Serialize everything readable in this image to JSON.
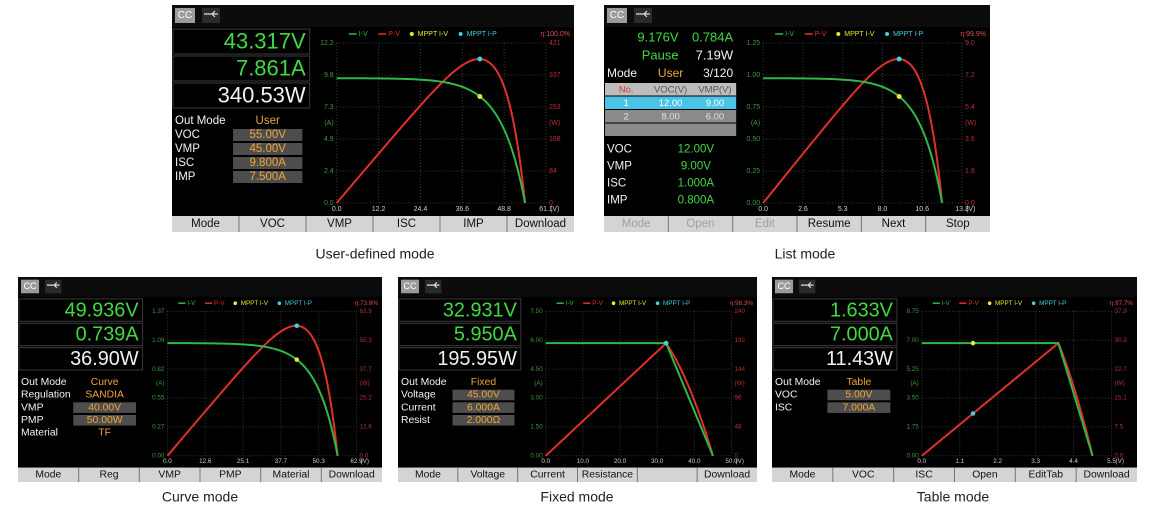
{
  "screens": [
    {
      "caption": "User-defined mode",
      "status": "CC",
      "readings": [
        "43.317V",
        "7.861A",
        "340.53W"
      ],
      "params": [
        {
          "label": "Out Mode",
          "value": "User"
        },
        {
          "label": "VOC",
          "value": "55.00V"
        },
        {
          "label": "VMP",
          "value": "45.00V"
        },
        {
          "label": "ISC",
          "value": "9.800A"
        },
        {
          "label": "IMP",
          "value": "7.500A"
        }
      ],
      "legend": [
        "I-V",
        "P-V",
        "MPPT I-V",
        "MPPT I-P"
      ],
      "efficiency": "η:100.0%",
      "xticks": [
        "0.0",
        "12.2",
        "24.4",
        "36.6",
        "48.8",
        "61.1"
      ],
      "x_unit": "(V)",
      "yticks": [
        "12.2",
        "9.8",
        "7.3",
        "4.9",
        "2.4",
        "0.0"
      ],
      "y_unit": "(A)",
      "y2ticks": [
        "421",
        "337",
        "253",
        "168",
        "84",
        "0"
      ],
      "y2_unit": "(W)",
      "softkeys": [
        "Mode",
        "VOC",
        "VMP",
        "ISC",
        "IMP",
        "Download"
      ]
    },
    {
      "caption": "List mode",
      "status": "CC",
      "readings": [
        "9.176V",
        "0.784A",
        "Pause",
        "7.19W"
      ],
      "mode_row": [
        "Mode",
        "User",
        "3/120"
      ],
      "table": {
        "header": [
          "No.",
          "VOC(V)",
          "VMP(V)"
        ],
        "rows": [
          [
            "1",
            "12.00",
            "9.00"
          ],
          [
            "2",
            "8.00",
            "6.00"
          ]
        ]
      },
      "params": [
        {
          "label": "VOC",
          "value": "12.00V"
        },
        {
          "label": "VMP",
          "value": "9.00V"
        },
        {
          "label": "ISC",
          "value": "1.000A"
        },
        {
          "label": "IMP",
          "value": "0.800A"
        }
      ],
      "legend": [
        "I-V",
        "P-V",
        "MPPT I-V",
        "MPPT I-P"
      ],
      "efficiency": "η:99.9%",
      "xticks": [
        "0.0",
        "2.6",
        "5.3",
        "8.0",
        "10.6",
        "13.3"
      ],
      "x_unit": "(V)",
      "yticks": [
        "1.25",
        "1.00",
        "0.75",
        "0.50",
        "0.25",
        "0.00"
      ],
      "y_unit": "(A)",
      "y2ticks": [
        "9.0",
        "7.2",
        "5.4",
        "3.6",
        "1.8",
        "0.0"
      ],
      "y2_unit": "(W)",
      "softkeys": [
        {
          "label": "Mode",
          "dimmed": true
        },
        {
          "label": "Open",
          "dimmed": true
        },
        {
          "label": "Edit",
          "dimmed": true
        },
        {
          "label": "Resume",
          "dimmed": false
        },
        {
          "label": "Next",
          "dimmed": false
        },
        {
          "label": "Stop",
          "dimmed": false
        }
      ]
    },
    {
      "caption": "Curve mode",
      "status": "CC",
      "readings": [
        "49.936V",
        "0.739A",
        "36.90W"
      ],
      "params": [
        {
          "label": "Out Mode",
          "value": "Curve"
        },
        {
          "label": "Regulation",
          "value": "SANDIA"
        },
        {
          "label": "VMP",
          "value": "40.00V"
        },
        {
          "label": "PMP",
          "value": "50.00W"
        },
        {
          "label": "Material",
          "value": "TF"
        }
      ],
      "legend": [
        "I-V",
        "P-V",
        "MPPT I-V",
        "MPPT I-P"
      ],
      "efficiency": "η:73.9%",
      "xticks": [
        "0.0",
        "12.6",
        "25.1",
        "37.7",
        "50.3",
        "62.9"
      ],
      "x_unit": "(V)",
      "yticks": [
        "1.37",
        "1.09",
        "0.82",
        "0.55",
        "0.27",
        "0.00"
      ],
      "y_unit": "(A)",
      "y2ticks": [
        "62.9",
        "50.3",
        "37.7",
        "25.2",
        "12.6",
        "0.0"
      ],
      "y2_unit": "(W)",
      "softkeys": [
        "Mode",
        "Reg",
        "VMP",
        "PMP",
        "Material",
        "Download"
      ]
    },
    {
      "caption": "Fixed mode",
      "status": "CC",
      "readings": [
        "32.931V",
        "5.950A",
        "195.95W"
      ],
      "params": [
        {
          "label": "Out Mode",
          "value": "Fixed"
        },
        {
          "label": "Voltage",
          "value": "45.00V"
        },
        {
          "label": "Current",
          "value": "6.000A"
        },
        {
          "label": "Resist",
          "value": "2.000Ω"
        }
      ],
      "legend": [
        "I-V",
        "P-V",
        "MPPT I-V",
        "MPPT I-P"
      ],
      "efficiency": "η:98.3%",
      "xticks": [
        "0.0",
        "10.0",
        "20.0",
        "30.0",
        "40.0",
        "50.0"
      ],
      "x_unit": "(V)",
      "yticks": [
        "7.50",
        "6.00",
        "4.50",
        "3.00",
        "1.50",
        "0.00"
      ],
      "y_unit": "(A)",
      "y2ticks": [
        "240",
        "192",
        "144",
        "96",
        "48",
        "0"
      ],
      "y2_unit": "(W)",
      "softkeys": [
        "Mode",
        "Voltage",
        "Current",
        "Resistance",
        null,
        "Download"
      ]
    },
    {
      "caption": "Table mode",
      "status": "CC",
      "readings": [
        "1.633V",
        "7.000A",
        "11.43W"
      ],
      "params": [
        {
          "label": "Out Mode",
          "value": "Table"
        },
        {
          "label": "VOC",
          "value": "5.00V"
        },
        {
          "label": "ISC",
          "value": "7.000A"
        }
      ],
      "legend": [
        "I-V",
        "P-V",
        "MPPT I-V",
        "MPPT I-P"
      ],
      "efficiency": "η:97.7%",
      "xticks": [
        "0.0",
        "1.1",
        "2.2",
        "3.3",
        "4.4",
        "5.5"
      ],
      "x_unit": "(V)",
      "yticks": [
        "8.75",
        "7.00",
        "5.25",
        "3.50",
        "1.75",
        "0.00"
      ],
      "y_unit": "(A)",
      "y2ticks": [
        "37.9",
        "30.3",
        "22.7",
        "15.1",
        "7.5",
        "0.0"
      ],
      "y2_unit": "(W)",
      "softkeys": [
        "Mode",
        "VOC",
        "ISC",
        "Open",
        "EditTab",
        "Download"
      ]
    }
  ]
}
